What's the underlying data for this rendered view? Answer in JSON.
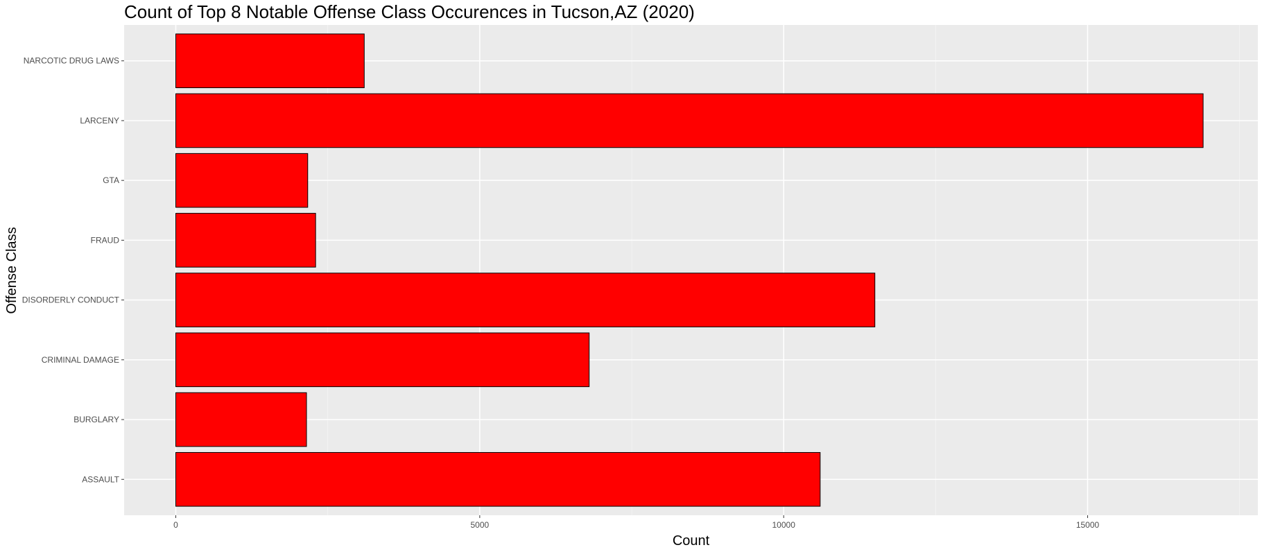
{
  "chart_data": {
    "type": "bar",
    "orientation": "horizontal",
    "title": "Count of Top 8 Notable Offense Class Occurences in Tucson,AZ (2020)",
    "xlabel": "Count",
    "ylabel": "Offense Class",
    "categories": [
      "ASSAULT",
      "BURGLARY",
      "CRIMINAL DAMAGE",
      "DISORDERLY CONDUCT",
      "FRAUD",
      "GTA",
      "LARCENY",
      "NARCOTIC DRUG LAWS"
    ],
    "values": [
      10600,
      2150,
      6800,
      11500,
      2300,
      2170,
      16900,
      3100
    ],
    "xlim": [
      -850,
      17800
    ],
    "xticks": [
      0,
      5000,
      10000,
      15000
    ],
    "xtick_labels": [
      "0",
      "5000",
      "10000",
      "15000"
    ],
    "grid": true,
    "legend": "none",
    "colors": {
      "bar_fill": "#ff0000",
      "bar_stroke": "#000000",
      "panel_background": "#ebebeb",
      "grid_major": "#ffffff",
      "grid_minor": "#f5f5f5"
    }
  }
}
